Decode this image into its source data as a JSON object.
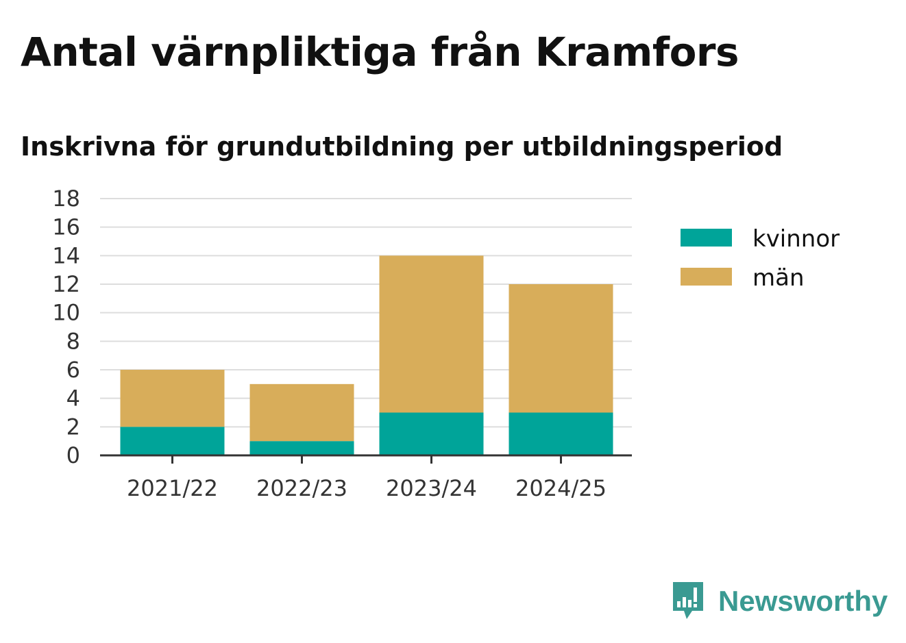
{
  "title": "Antal värnpliktiga från Kramfors",
  "subtitle": "Inskrivna för grundutbildning per utbildningsperiod",
  "brand": {
    "name": "Newsworthy",
    "icon": "newsworthy-logo-icon"
  },
  "colors": {
    "kvinnor": "#00a499",
    "man": "#d8ad5a",
    "brand": "#3a9a92"
  },
  "chart_data": {
    "type": "bar",
    "stacked": true,
    "categories": [
      "2021/22",
      "2022/23",
      "2023/24",
      "2024/25"
    ],
    "series": [
      {
        "name": "kvinnor",
        "values": [
          2,
          1,
          3,
          3
        ]
      },
      {
        "name": "män",
        "values": [
          4,
          4,
          11,
          9
        ]
      }
    ],
    "title": "Antal värnpliktiga från Kramfors",
    "subtitle": "Inskrivna för grundutbildning per utbildningsperiod",
    "ylim": [
      0,
      18
    ],
    "yticks": [
      "0",
      "2",
      "4",
      "6",
      "8",
      "10",
      "12",
      "14",
      "16",
      "18"
    ],
    "grid": true,
    "legend": "right"
  }
}
